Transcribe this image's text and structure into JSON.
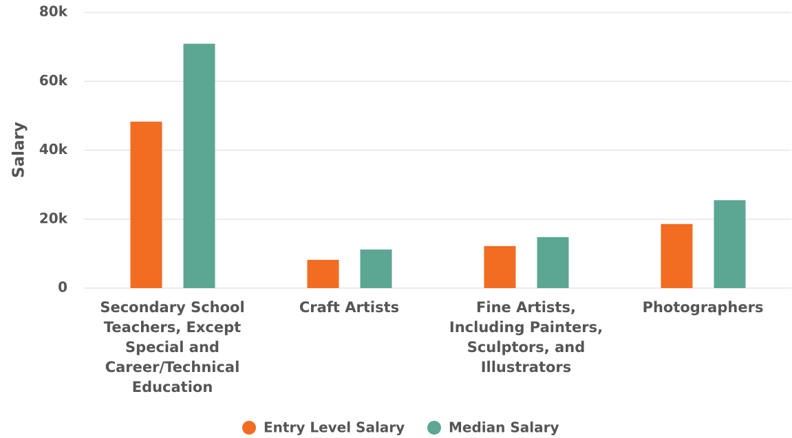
{
  "chart_data": {
    "type": "bar",
    "y_label": "Salary",
    "categories": [
      "Secondary School Teachers, Except Special and Career/Technical Education",
      "Craft Artists",
      "Fine Artists, Including Painters, Sculptors, and Illustrators",
      "Photographers"
    ],
    "series": [
      {
        "name": "Entry Level Salary",
        "color": "#f26c22",
        "values": [
          48300,
          8200,
          12200,
          18600
        ]
      },
      {
        "name": "Median Salary",
        "color": "#5ba793",
        "values": [
          70900,
          11200,
          14800,
          25500
        ]
      }
    ],
    "ylim": [
      0,
      80000
    ],
    "yticks": [
      0,
      {
        "value": 20000,
        "label": "20k"
      },
      {
        "value": 40000,
        "label": "40k"
      },
      {
        "value": 60000,
        "label": "60k"
      },
      {
        "value": 80000,
        "label": "80k"
      }
    ],
    "grid": true,
    "legend": "bottom"
  }
}
